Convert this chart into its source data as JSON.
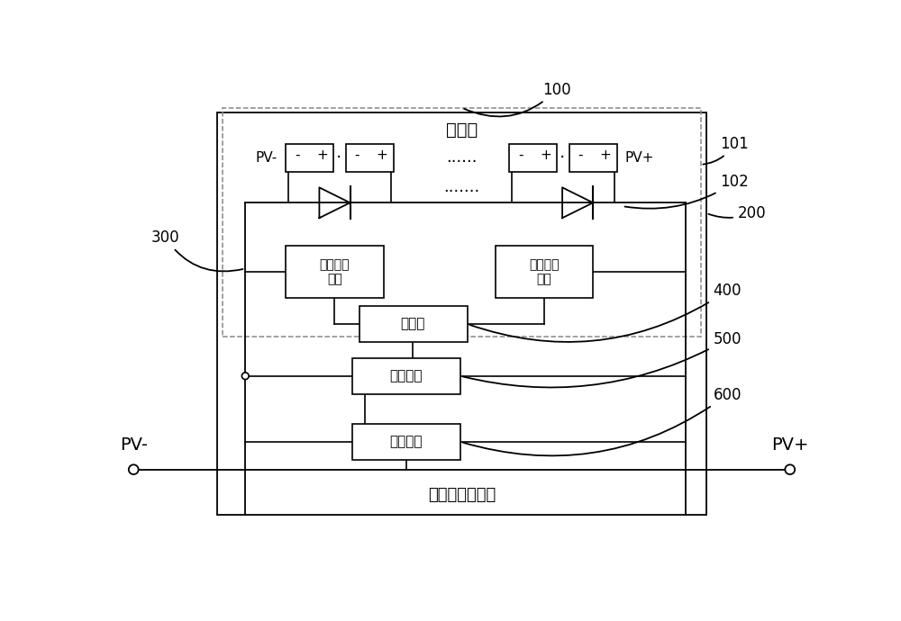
{
  "bg_color": "#ffffff",
  "line_color": "#000000",
  "fig_width": 10.0,
  "fig_height": 6.9,
  "label_dianchi": "电池板",
  "label_dianchi_jiankong": "电池板监控系统",
  "label_dianya1": "电压采集\n电路",
  "label_dianya2": "电压采集\n电路",
  "label_kongzhiqi": "控制器",
  "label_fasong": "发送电路",
  "label_jieshou": "接收电路",
  "label_pv_minus": "PV-",
  "label_pv_plus": "PV+",
  "label_pv_minus_left": "PV-",
  "label_pv_plus_right": "PV+",
  "num_100": "100",
  "num_101": "101",
  "num_102": "102",
  "num_200": "200",
  "num_300": "300",
  "num_400": "400",
  "num_500": "500",
  "num_600": "600"
}
